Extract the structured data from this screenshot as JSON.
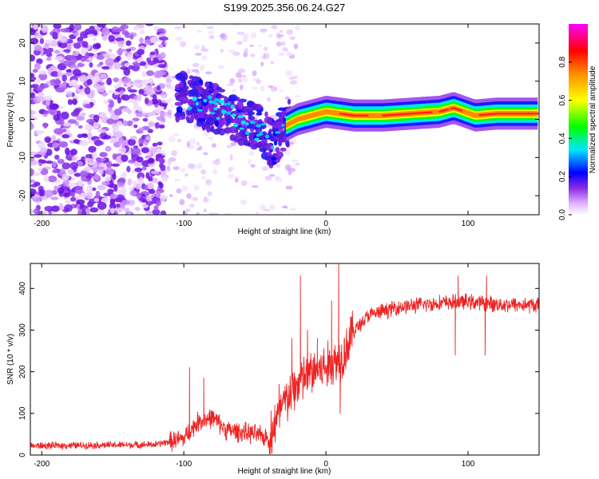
{
  "title": "S199.2025.356.06.24.G27",
  "chart_data": [
    {
      "type": "heatmap",
      "xlabel": "Height of straight line (km)",
      "ylabel": "Frequency (Hz)",
      "xlim": [
        -208,
        150
      ],
      "ylim": [
        -25,
        25
      ],
      "xticks": [
        -200,
        -100,
        0,
        100
      ],
      "yticks": [
        -20,
        -10,
        0,
        10,
        20
      ],
      "description_note": "Noise blobs (purple) for x<-100; dispersed signal -100..-30 km trending from +5 Hz to -7 Hz; coherent narrow band near +1..+2 Hz for x>-25 km",
      "ridge": [
        {
          "x": -100,
          "y": 6
        },
        {
          "x": -80,
          "y": 3
        },
        {
          "x": -60,
          "y": 0
        },
        {
          "x": -45,
          "y": -3
        },
        {
          "x": -37,
          "y": -7
        },
        {
          "x": -30,
          "y": -2
        },
        {
          "x": -20,
          "y": 0
        },
        {
          "x": -10,
          "y": 1
        },
        {
          "x": 0,
          "y": 2
        },
        {
          "x": 20,
          "y": 1
        },
        {
          "x": 40,
          "y": 1
        },
        {
          "x": 60,
          "y": 1.5
        },
        {
          "x": 80,
          "y": 2
        },
        {
          "x": 90,
          "y": 3
        },
        {
          "x": 105,
          "y": 1
        },
        {
          "x": 120,
          "y": 1.5
        },
        {
          "x": 150,
          "y": 1.5
        }
      ],
      "colorbar": {
        "label": "Normalized spectral amplitude",
        "range": [
          0,
          1
        ],
        "ticks": [
          0.0,
          0.2,
          0.4,
          0.6,
          0.8
        ],
        "tick_labels": [
          "0.0",
          "0.2",
          "0.4",
          "0.6",
          "0.8"
        ],
        "colors": [
          "#ffffff",
          "#d9a6ff",
          "#8a2be2",
          "#0000ff",
          "#00e5ff",
          "#00ff00",
          "#ffff00",
          "#ff8c00",
          "#ff0000",
          "#ff00ff"
        ]
      }
    },
    {
      "type": "line",
      "xlabel": "Height of straight line (km)",
      "ylabel": "SNR (10 * v/v)",
      "xlim": [
        -208,
        150
      ],
      "ylim": [
        0,
        460
      ],
      "xticks": [
        -200,
        -100,
        0,
        100
      ],
      "yticks": [
        0,
        100,
        200,
        300,
        400
      ],
      "color": "#ee2222",
      "baseline": [
        {
          "x": -208,
          "y": 22
        },
        {
          "x": -120,
          "y": 25
        },
        {
          "x": -100,
          "y": 40
        },
        {
          "x": -90,
          "y": 80
        },
        {
          "x": -80,
          "y": 90
        },
        {
          "x": -70,
          "y": 60
        },
        {
          "x": -50,
          "y": 50
        },
        {
          "x": -40,
          "y": 40
        },
        {
          "x": -30,
          "y": 120
        },
        {
          "x": -20,
          "y": 170
        },
        {
          "x": -10,
          "y": 200
        },
        {
          "x": 0,
          "y": 210
        },
        {
          "x": 10,
          "y": 230
        },
        {
          "x": 20,
          "y": 300
        },
        {
          "x": 30,
          "y": 335
        },
        {
          "x": 50,
          "y": 355
        },
        {
          "x": 80,
          "y": 365
        },
        {
          "x": 100,
          "y": 368
        },
        {
          "x": 120,
          "y": 362
        },
        {
          "x": 150,
          "y": 360
        }
      ],
      "spikes": [
        {
          "x": -96,
          "y": 210
        },
        {
          "x": -86,
          "y": 185
        },
        {
          "x": -36,
          "y": 120
        },
        {
          "x": -33,
          "y": 170
        },
        {
          "x": -24,
          "y": 280
        },
        {
          "x": -18,
          "y": 430
        },
        {
          "x": -13,
          "y": 300
        },
        {
          "x": -6,
          "y": 280
        },
        {
          "x": 4,
          "y": 370
        },
        {
          "x": 9,
          "y": 460
        },
        {
          "x": 10,
          "y": 100
        },
        {
          "x": 91,
          "y": 240
        },
        {
          "x": 93,
          "y": 430
        },
        {
          "x": 112,
          "y": 240
        },
        {
          "x": 113,
          "y": 430
        }
      ]
    }
  ]
}
